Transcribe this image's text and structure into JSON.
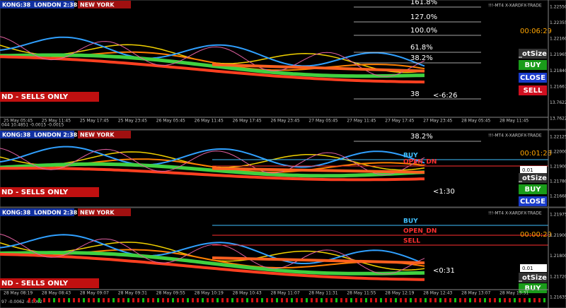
{
  "panels": [
    {
      "indicator_title": "!!!-MT4 X-XARDFX-TRADE",
      "sessions": [
        "KONG:38",
        "LONDON 2:38",
        "NEW YORK"
      ],
      "fib_levels": [
        "161.8%",
        "127.0%",
        "100.0%",
        "61.8%",
        "38.2%",
        "38"
      ],
      "chart_labels": [],
      "timer": "00:06:29",
      "countdown": "<-6:26",
      "lot_value": null,
      "buttons": [
        "_otSize",
        "BUY",
        "CLOSE",
        "SELL"
      ],
      "banner": "ND - SELLS ONLY",
      "indicator_values": "044 10.4851 -0.0015 -0.0015",
      "price_labels": [
        "1.22550",
        "1.22355",
        "1.22160",
        "1.21965",
        "1.21840",
        "1.21667",
        "13.7622",
        "13.7622"
      ],
      "time_labels": [
        "25 May 05:45",
        "25 May 11:45",
        "25 May 17:45",
        "25 May 23:45",
        "26 May 05:45",
        "26 May 11:45",
        "26 May 17:45",
        "26 May 23:45",
        "27 May 05:45",
        "27 May 11:45",
        "27 May 17:45",
        "27 May 23:45",
        "28 May 05:45",
        "28 May 11:45"
      ]
    },
    {
      "indicator_title": "!!!-MT4 X-XARDFX-TRADE",
      "sessions": [
        "KONG:38",
        "LONDON 2:38",
        "NEW YORK"
      ],
      "fib_levels": [
        "38.2%"
      ],
      "chart_labels": [
        {
          "text": "BUY",
          "color": "#40c0ff"
        },
        {
          "text": "OPEN_DN",
          "color": "#ff3030"
        }
      ],
      "timer": "00:01:28",
      "countdown": "<1:30",
      "lot_value": "0.01",
      "buttons": [
        "_otSize",
        "BUY",
        "CLOSE"
      ],
      "banner": "ND - SELLS ONLY",
      "indicator_values": null,
      "price_labels": [
        "1.22125",
        "1.22000",
        "1.21900",
        "1.21780",
        "1.21668"
      ],
      "time_labels": []
    },
    {
      "indicator_title": "!!!-MT4 X-XARDFX-TRADE",
      "sessions": [
        "KONG:38",
        "LONDON 2:38",
        "NEW YORK"
      ],
      "fib_levels": [],
      "chart_labels": [
        {
          "text": "BUY",
          "color": "#40c0ff"
        },
        {
          "text": "OPEN_DN",
          "color": "#ff3030"
        },
        {
          "text": "SELL",
          "color": "#ff3030"
        }
      ],
      "timer": "00:00:29",
      "countdown": "<0:31",
      "lot_value": "0.01",
      "buttons": [
        "_otSize",
        "BUY"
      ],
      "banner": "ND - SELLS ONLY",
      "indicator_values": "97 -0.0062 -0.0062",
      "price_labels": [
        "1.21975",
        "1.21900",
        "1.21800",
        "1.21720",
        "1.21635"
      ],
      "time_labels": [
        "28 May 08:19",
        "28 May 08:43",
        "28 May 09:07",
        "28 May 09:31",
        "28 May 09:55",
        "28 May 10:19",
        "28 May 10:43",
        "28 May 11:07",
        "28 May 11:31",
        "28 May 11:55",
        "28 May 12:19",
        "28 May 12:43",
        "28 May 13:07",
        "28 May 13:31"
      ]
    }
  ]
}
